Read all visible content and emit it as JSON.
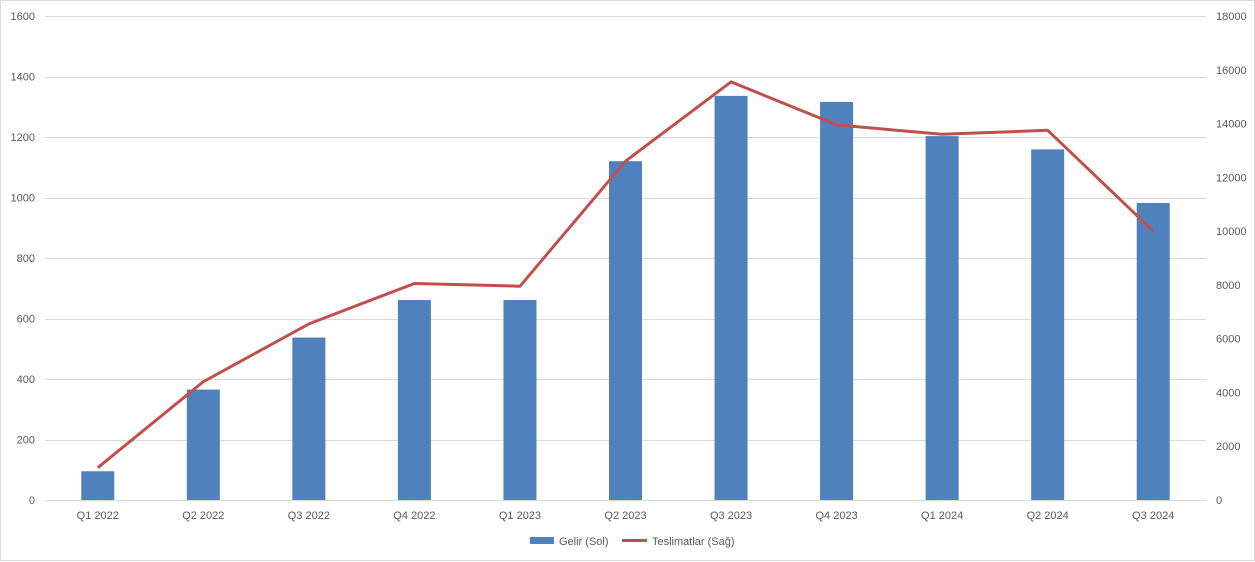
{
  "chart_data": {
    "type": "bar",
    "title": "",
    "categories": [
      "Q1 2022",
      "Q2 2022",
      "Q3 2022",
      "Q4 2022",
      "Q1 2023",
      "Q2 2023",
      "Q3 2023",
      "Q4 2023",
      "Q1 2024",
      "Q2 2024",
      "Q3 2024"
    ],
    "series": [
      {
        "name": "Gelir (Sol)",
        "type": "bar",
        "axis": "left",
        "color": "#4f81bd",
        "values": [
          95,
          365,
          537,
          661,
          661,
          1120,
          1336,
          1316,
          1203,
          1159,
          982
        ]
      },
      {
        "name": "Teslimatlar (Sağ)",
        "type": "line",
        "axis": "right",
        "color": "#c0504d",
        "values": [
          1200,
          4400,
          6550,
          8050,
          7950,
          12600,
          15550,
          13950,
          13600,
          13750,
          10000
        ]
      }
    ],
    "y_left": {
      "min": 0,
      "max": 1600,
      "step": 200,
      "ticks": [
        "0",
        "200",
        "400",
        "600",
        "800",
        "1000",
        "1200",
        "1400",
        "1600"
      ]
    },
    "y_right": {
      "min": 0,
      "max": 18000,
      "step": 2000,
      "ticks": [
        "0",
        "2000",
        "4000",
        "6000",
        "8000",
        "10000",
        "12000",
        "14000",
        "16000",
        "18000"
      ]
    },
    "grid": true,
    "legend": "bottom"
  }
}
